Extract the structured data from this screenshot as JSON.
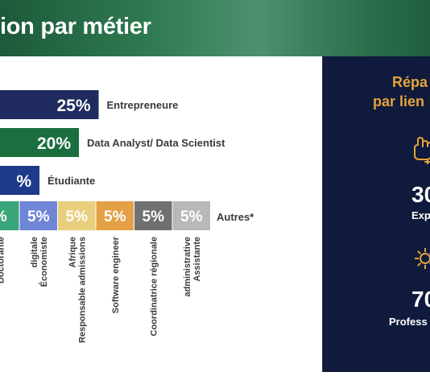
{
  "header": {
    "title": "ion par métier"
  },
  "chart_data": {
    "type": "bar",
    "orientation": "horizontal",
    "title": "ion par métier",
    "categories": [
      "Entrepreneure",
      "Data Analyst/ Data Scientist",
      "Étudiante",
      "Autres*"
    ],
    "values": [
      25,
      20,
      10,
      30
    ],
    "value_labels": [
      "25%",
      "20%",
      "%",
      ""
    ],
    "colors": [
      "#1f2b5e",
      "#1b6e3d",
      "#1e3a8a",
      "#b0b0b0"
    ],
    "autres_breakdown": {
      "label": "Autres*",
      "items": [
        {
          "label": "Doctorante",
          "value": 5,
          "value_label": "%",
          "color": "#3aa77a"
        },
        {
          "label": "Économiste digitale",
          "value": 5,
          "value_label": "5%",
          "color": "#6f86d6"
        },
        {
          "label": "Responsable admissions Afrique",
          "value": 5,
          "value_label": "5%",
          "color": "#e9cf7d"
        },
        {
          "label": "Software engineer",
          "value": 5,
          "value_label": "5%",
          "color": "#e3a045"
        },
        {
          "label": "Coordinatrice régionale",
          "value": 5,
          "value_label": "5%",
          "color": "#707070"
        },
        {
          "label": "Assistante administrative",
          "value": 5,
          "value_label": "5%",
          "color": "#b8b8b8"
        }
      ]
    }
  },
  "side_panel": {
    "title_line1": "Répa",
    "title_line2": "par lien",
    "stat1_value": "30",
    "stat1_label": "Exp",
    "stat2_value": "70",
    "stat2_label": "Profess",
    "icon1": "hand-icon",
    "icon2": "gear-icon",
    "accent": "#e6a33a",
    "background": "#0f1a3c"
  }
}
